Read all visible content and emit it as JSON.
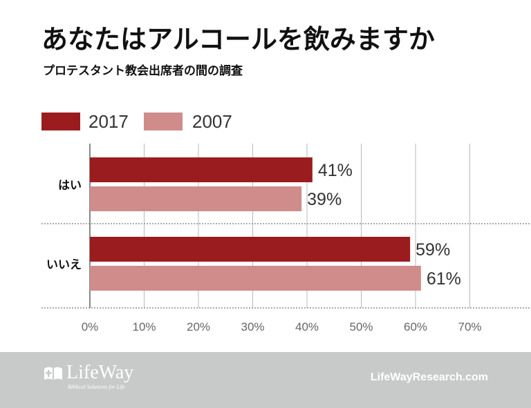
{
  "title": "あなたはアルコールを飲みますか",
  "subtitle": "プロテスタント教会出席者の間の調査",
  "colors": {
    "series_2017": "#9b1c1f",
    "series_2007": "#d08b8b",
    "grid": "#b8b8b8",
    "footer_bg": "#c8c9c9"
  },
  "chart_data": {
    "type": "bar",
    "orientation": "horizontal",
    "categories": [
      "はい",
      "いいえ"
    ],
    "series": [
      {
        "name": "2017",
        "values": [
          41,
          59
        ],
        "labels": [
          "41%",
          "59%"
        ]
      },
      {
        "name": "2007",
        "values": [
          39,
          61
        ],
        "labels": [
          "39%",
          "61%"
        ]
      }
    ],
    "xlim": [
      0,
      70
    ],
    "x_ticks": [
      0,
      10,
      20,
      30,
      40,
      50,
      60,
      70
    ],
    "x_tick_labels": [
      "0%",
      "10%",
      "20%",
      "30%",
      "40%",
      "50%",
      "60%",
      "70%"
    ],
    "grid": true,
    "legend_position": "top-left"
  },
  "footer": {
    "logo_text": "LifeWay",
    "logo_tagline": "Biblical Solutions for Life",
    "website": "LifeWayResearch.com"
  }
}
